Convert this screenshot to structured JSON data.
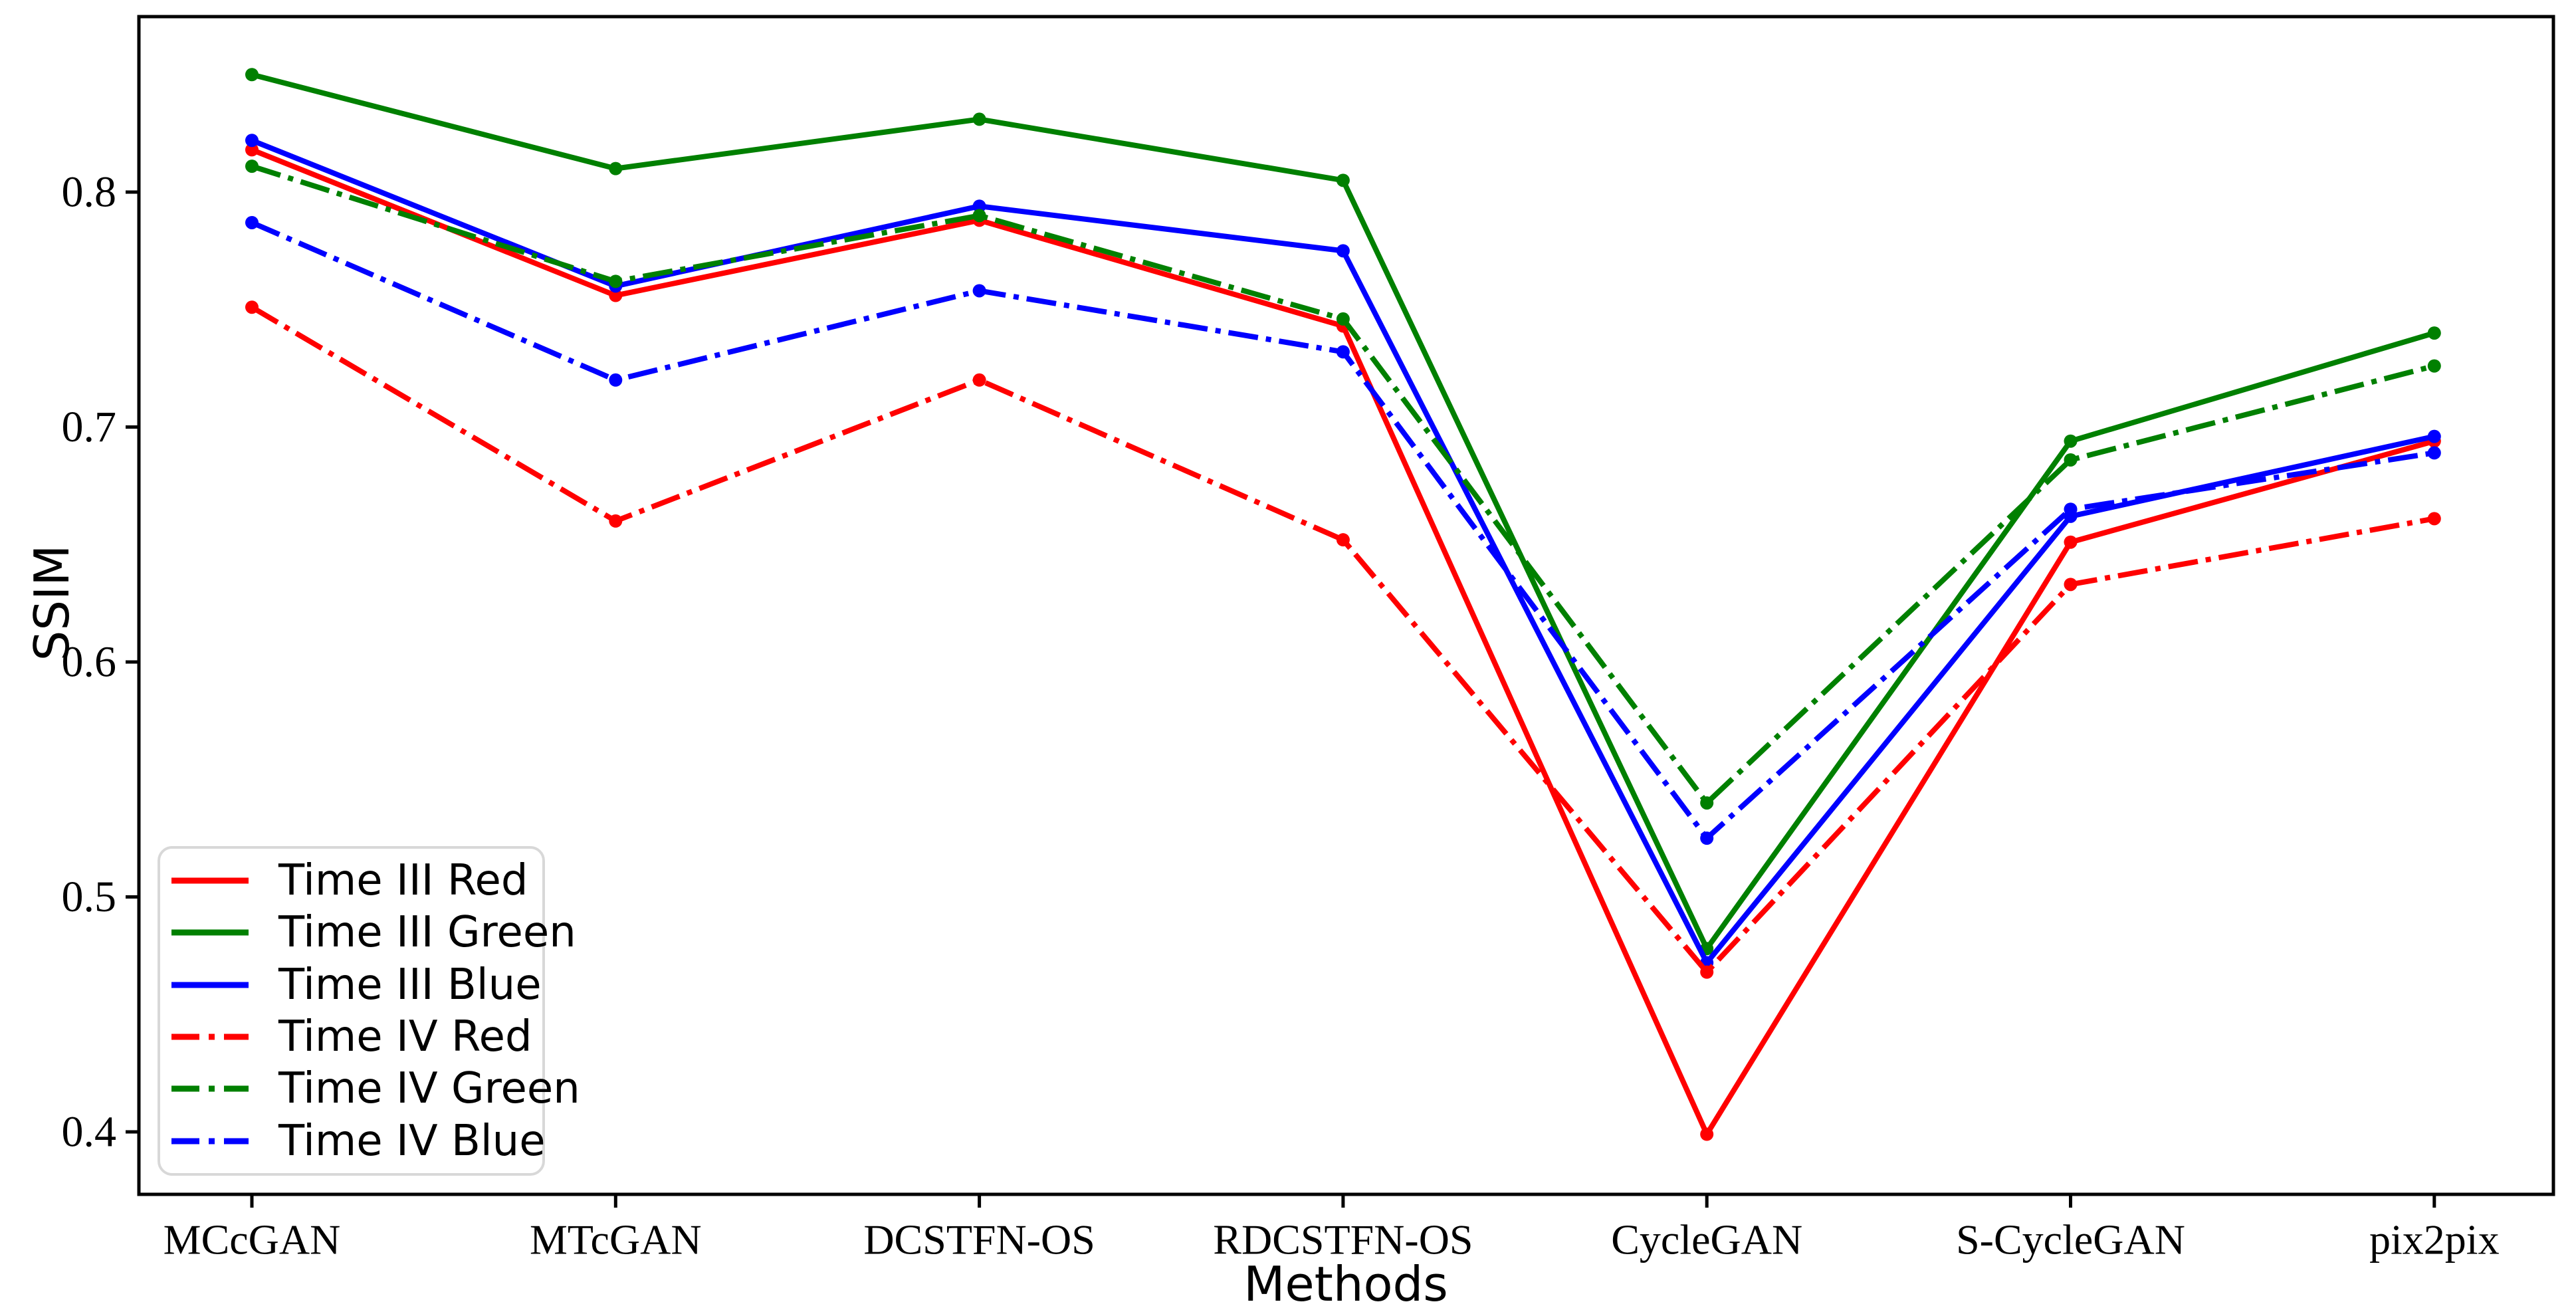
{
  "chart_data": {
    "type": "line",
    "title": "",
    "xlabel": "Methods",
    "ylabel": "SSIM",
    "categories": [
      "MCcGAN",
      "MTcGAN",
      "DCSTFN-OS",
      "RDCSTFN-OS",
      "CycleGAN",
      "S-CycleGAN",
      "pix2pix"
    ],
    "y_ticks": [
      0.4,
      0.5,
      0.6,
      0.7,
      0.8
    ],
    "y_tick_labels": [
      "0.4",
      "0.5",
      "0.6",
      "0.7",
      "0.8"
    ],
    "ylim": [
      0.372,
      0.875
    ],
    "grid": false,
    "legend_position": "lower-left",
    "axis_color": "#000000",
    "legend_border_color": "#d8d8d8",
    "series": [
      {
        "name": "Time III Red",
        "color": "#ff0000",
        "style": "solid",
        "values": [
          0.818,
          0.756,
          0.788,
          0.743,
          0.399,
          0.651,
          0.694
        ]
      },
      {
        "name": "Time III Green",
        "color": "#008000",
        "style": "solid",
        "values": [
          0.85,
          0.81,
          0.831,
          0.805,
          0.478,
          0.694,
          0.74
        ]
      },
      {
        "name": "Time III Blue",
        "color": "#0000ff",
        "style": "solid",
        "values": [
          0.822,
          0.76,
          0.794,
          0.775,
          0.472,
          0.662,
          0.696
        ]
      },
      {
        "name": "Time IV Red",
        "color": "#ff0000",
        "style": "dashdot",
        "values": [
          0.751,
          0.66,
          0.72,
          0.652,
          0.468,
          0.633,
          0.661
        ]
      },
      {
        "name": "Time IV Green",
        "color": "#008000",
        "style": "dashdot",
        "values": [
          0.811,
          0.762,
          0.79,
          0.746,
          0.54,
          0.686,
          0.726
        ]
      },
      {
        "name": "Time IV Blue",
        "color": "#0000ff",
        "style": "dashdot",
        "values": [
          0.787,
          0.72,
          0.758,
          0.732,
          0.525,
          0.665,
          0.689
        ]
      }
    ]
  }
}
